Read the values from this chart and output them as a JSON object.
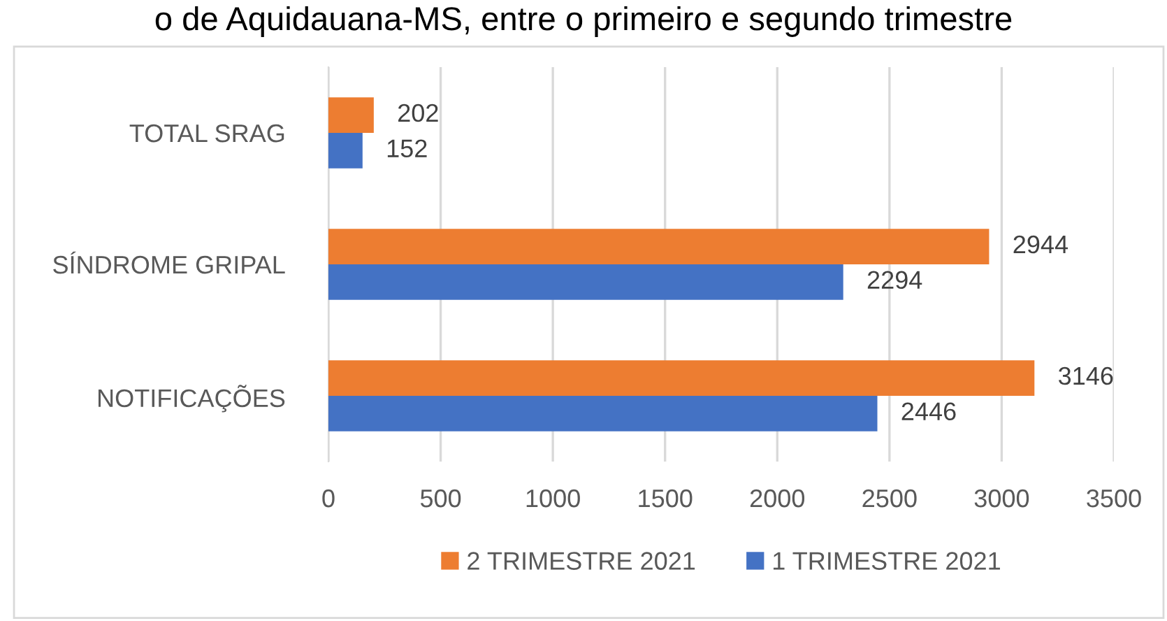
{
  "chart_data": {
    "type": "bar",
    "orientation": "horizontal",
    "title": "o de Aquidauana-MS, entre o primeiro e segundo trimestre",
    "categories": [
      "TOTAL SRAG",
      "SÍNDROME GRIPAL",
      "NOTIFICAÇÕES"
    ],
    "series": [
      {
        "name": "2 TRIMESTRE 2021",
        "color": "#ed7d31",
        "values": [
          202,
          2944,
          3146
        ]
      },
      {
        "name": "1 TRIMESTRE 2021",
        "color": "#4472c4",
        "values": [
          152,
          2294,
          2446
        ]
      }
    ],
    "xlim": [
      0,
      3500
    ],
    "xticks": [
      0,
      500,
      1000,
      1500,
      2000,
      2500,
      3000,
      3500
    ],
    "grid": "x",
    "legend": "bottom",
    "data_labels": true
  }
}
